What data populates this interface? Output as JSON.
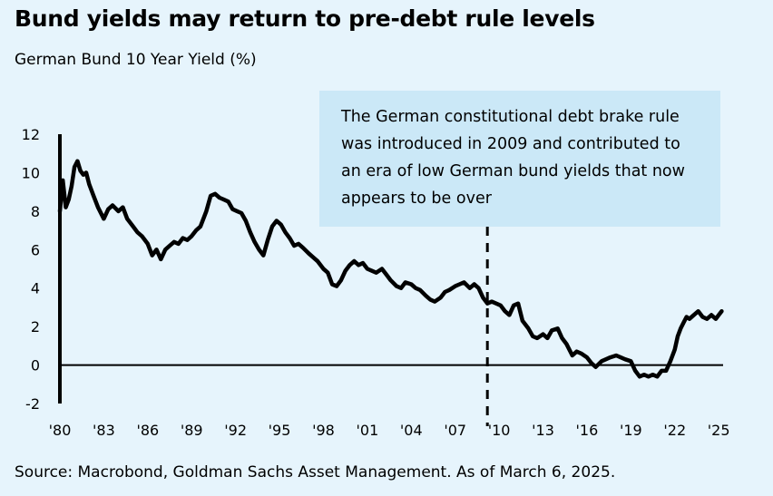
{
  "title": "Bund yields may return to pre-debt rule levels",
  "subtitle": "German Bund 10 Year Yield (%)",
  "annotation": "The German constitutional debt brake rule was introduced in 2009 and contributed to an era of low German bund yields that now appears to be over",
  "source": "Source: Macrobond, Goldman Sachs Asset Management. As of March 6, 2025.",
  "colors": {
    "background": "#e6f4fc",
    "callout": "#cbe8f7",
    "line": "#000000"
  },
  "chart_data": {
    "type": "line",
    "title": "Bund yields may return to pre-debt rule levels",
    "ylabel": "German Bund 10 Year Yield (%)",
    "xlim": [
      1980,
      2025.3
    ],
    "ylim": [
      -2,
      12
    ],
    "yticks": [
      12,
      10,
      8,
      6,
      4,
      2,
      0,
      -2
    ],
    "xtick_labels": [
      "'80",
      "'83",
      "'86",
      "'89",
      "'92",
      "'95",
      "'98",
      "'01",
      "'04",
      "'07",
      "'10",
      "'13",
      "'16",
      "'19",
      "'22",
      "'25"
    ],
    "vline_year": 2009.2,
    "grid": false,
    "series": [
      {
        "x": [
          1980.0,
          1980.2,
          1980.4,
          1980.6,
          1980.8,
          1981.0,
          1981.2,
          1981.4,
          1981.6,
          1981.8,
          1982.0,
          1982.3,
          1982.6,
          1983.0,
          1983.3,
          1983.6,
          1984.0,
          1984.3,
          1984.6,
          1985.0,
          1985.3,
          1985.6,
          1986.0,
          1986.3,
          1986.6,
          1986.9,
          1987.2,
          1987.5,
          1987.8,
          1988.1,
          1988.4,
          1988.7,
          1989.0,
          1989.3,
          1989.6,
          1990.0,
          1990.3,
          1990.6,
          1990.9,
          1991.2,
          1991.5,
          1991.8,
          1992.1,
          1992.4,
          1992.7,
          1993.0,
          1993.3,
          1993.6,
          1993.9,
          1994.2,
          1994.5,
          1994.8,
          1995.1,
          1995.4,
          1995.7,
          1996.0,
          1996.3,
          1996.6,
          1997.0,
          1997.3,
          1997.6,
          1998.0,
          1998.3,
          1998.6,
          1998.9,
          1999.2,
          1999.5,
          1999.8,
          2000.1,
          2000.4,
          2000.7,
          2001.0,
          2001.3,
          2001.6,
          2002.0,
          2002.3,
          2002.6,
          2003.0,
          2003.3,
          2003.6,
          2004.0,
          2004.3,
          2004.6,
          2005.0,
          2005.3,
          2005.6,
          2006.0,
          2006.3,
          2006.6,
          2007.0,
          2007.3,
          2007.6,
          2008.0,
          2008.3,
          2008.6,
          2008.9,
          2009.2,
          2009.5,
          2009.8,
          2010.1,
          2010.4,
          2010.7,
          2011.0,
          2011.3,
          2011.6,
          2012.0,
          2012.3,
          2012.6,
          2013.0,
          2013.3,
          2013.6,
          2014.0,
          2014.3,
          2014.6,
          2015.0,
          2015.3,
          2015.6,
          2016.0,
          2016.3,
          2016.6,
          2017.0,
          2017.3,
          2017.6,
          2018.0,
          2018.3,
          2018.6,
          2019.0,
          2019.3,
          2019.6,
          2019.9,
          2020.2,
          2020.5,
          2020.8,
          2021.1,
          2021.4,
          2021.7,
          2022.0,
          2022.2,
          2022.4,
          2022.6,
          2022.8,
          2023.0,
          2023.3,
          2023.6,
          2023.9,
          2024.2,
          2024.5,
          2024.8,
          2025.0,
          2025.2
        ],
        "values": [
          8.0,
          9.6,
          8.2,
          8.6,
          9.3,
          10.3,
          10.6,
          10.1,
          9.9,
          10.0,
          9.4,
          8.8,
          8.2,
          7.6,
          8.1,
          8.3,
          8.0,
          8.2,
          7.6,
          7.2,
          6.9,
          6.7,
          6.3,
          5.7,
          6.0,
          5.5,
          6.0,
          6.2,
          6.4,
          6.3,
          6.6,
          6.5,
          6.7,
          7.0,
          7.2,
          8.0,
          8.8,
          8.9,
          8.7,
          8.6,
          8.5,
          8.1,
          8.0,
          7.9,
          7.5,
          6.9,
          6.4,
          6.0,
          5.7,
          6.5,
          7.2,
          7.5,
          7.3,
          6.9,
          6.6,
          6.2,
          6.3,
          6.1,
          5.8,
          5.6,
          5.4,
          5.0,
          4.8,
          4.2,
          4.1,
          4.4,
          4.9,
          5.2,
          5.4,
          5.2,
          5.3,
          5.0,
          4.9,
          4.8,
          5.0,
          4.7,
          4.4,
          4.1,
          4.0,
          4.3,
          4.2,
          4.0,
          3.9,
          3.6,
          3.4,
          3.3,
          3.5,
          3.8,
          3.9,
          4.1,
          4.2,
          4.3,
          4.0,
          4.2,
          4.0,
          3.5,
          3.2,
          3.3,
          3.2,
          3.1,
          2.8,
          2.6,
          3.1,
          3.2,
          2.3,
          1.9,
          1.5,
          1.4,
          1.6,
          1.4,
          1.8,
          1.9,
          1.4,
          1.1,
          0.5,
          0.7,
          0.6,
          0.4,
          0.1,
          -0.1,
          0.2,
          0.3,
          0.4,
          0.5,
          0.4,
          0.3,
          0.2,
          -0.3,
          -0.6,
          -0.5,
          -0.6,
          -0.5,
          -0.6,
          -0.3,
          -0.3,
          0.2,
          0.8,
          1.5,
          1.9,
          2.2,
          2.5,
          2.4,
          2.6,
          2.8,
          2.5,
          2.4,
          2.6,
          2.4,
          2.6,
          2.8
        ]
      }
    ]
  }
}
